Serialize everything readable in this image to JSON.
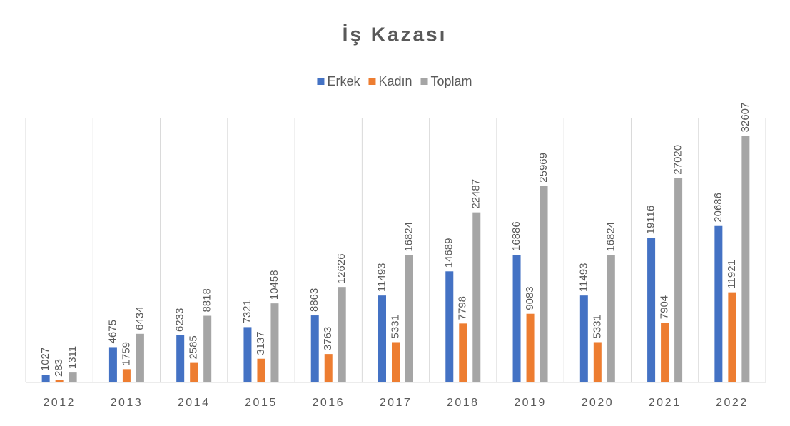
{
  "chart_data": {
    "type": "bar",
    "title": "İş Kazası",
    "categories": [
      "2012",
      "2013",
      "2014",
      "2015",
      "2016",
      "2017",
      "2018",
      "2019",
      "2020",
      "2021",
      "2022"
    ],
    "series": [
      {
        "name": "Erkek",
        "color": "#4472c4",
        "values": [
          1027,
          4675,
          6233,
          7321,
          8863,
          11493,
          14689,
          16886,
          11493,
          19116,
          20686
        ]
      },
      {
        "name": "Kadın",
        "color": "#ed7d31",
        "values": [
          283,
          1759,
          2585,
          3137,
          3763,
          5331,
          7798,
          9083,
          5331,
          7904,
          11921
        ]
      },
      {
        "name": "Toplam",
        "color": "#a5a5a5",
        "values": [
          1311,
          6434,
          8818,
          10458,
          12626,
          16824,
          22487,
          25969,
          16824,
          27020,
          32607
        ]
      }
    ],
    "ylim": [
      0,
      35000
    ],
    "legend": "top",
    "data_labels": true
  }
}
